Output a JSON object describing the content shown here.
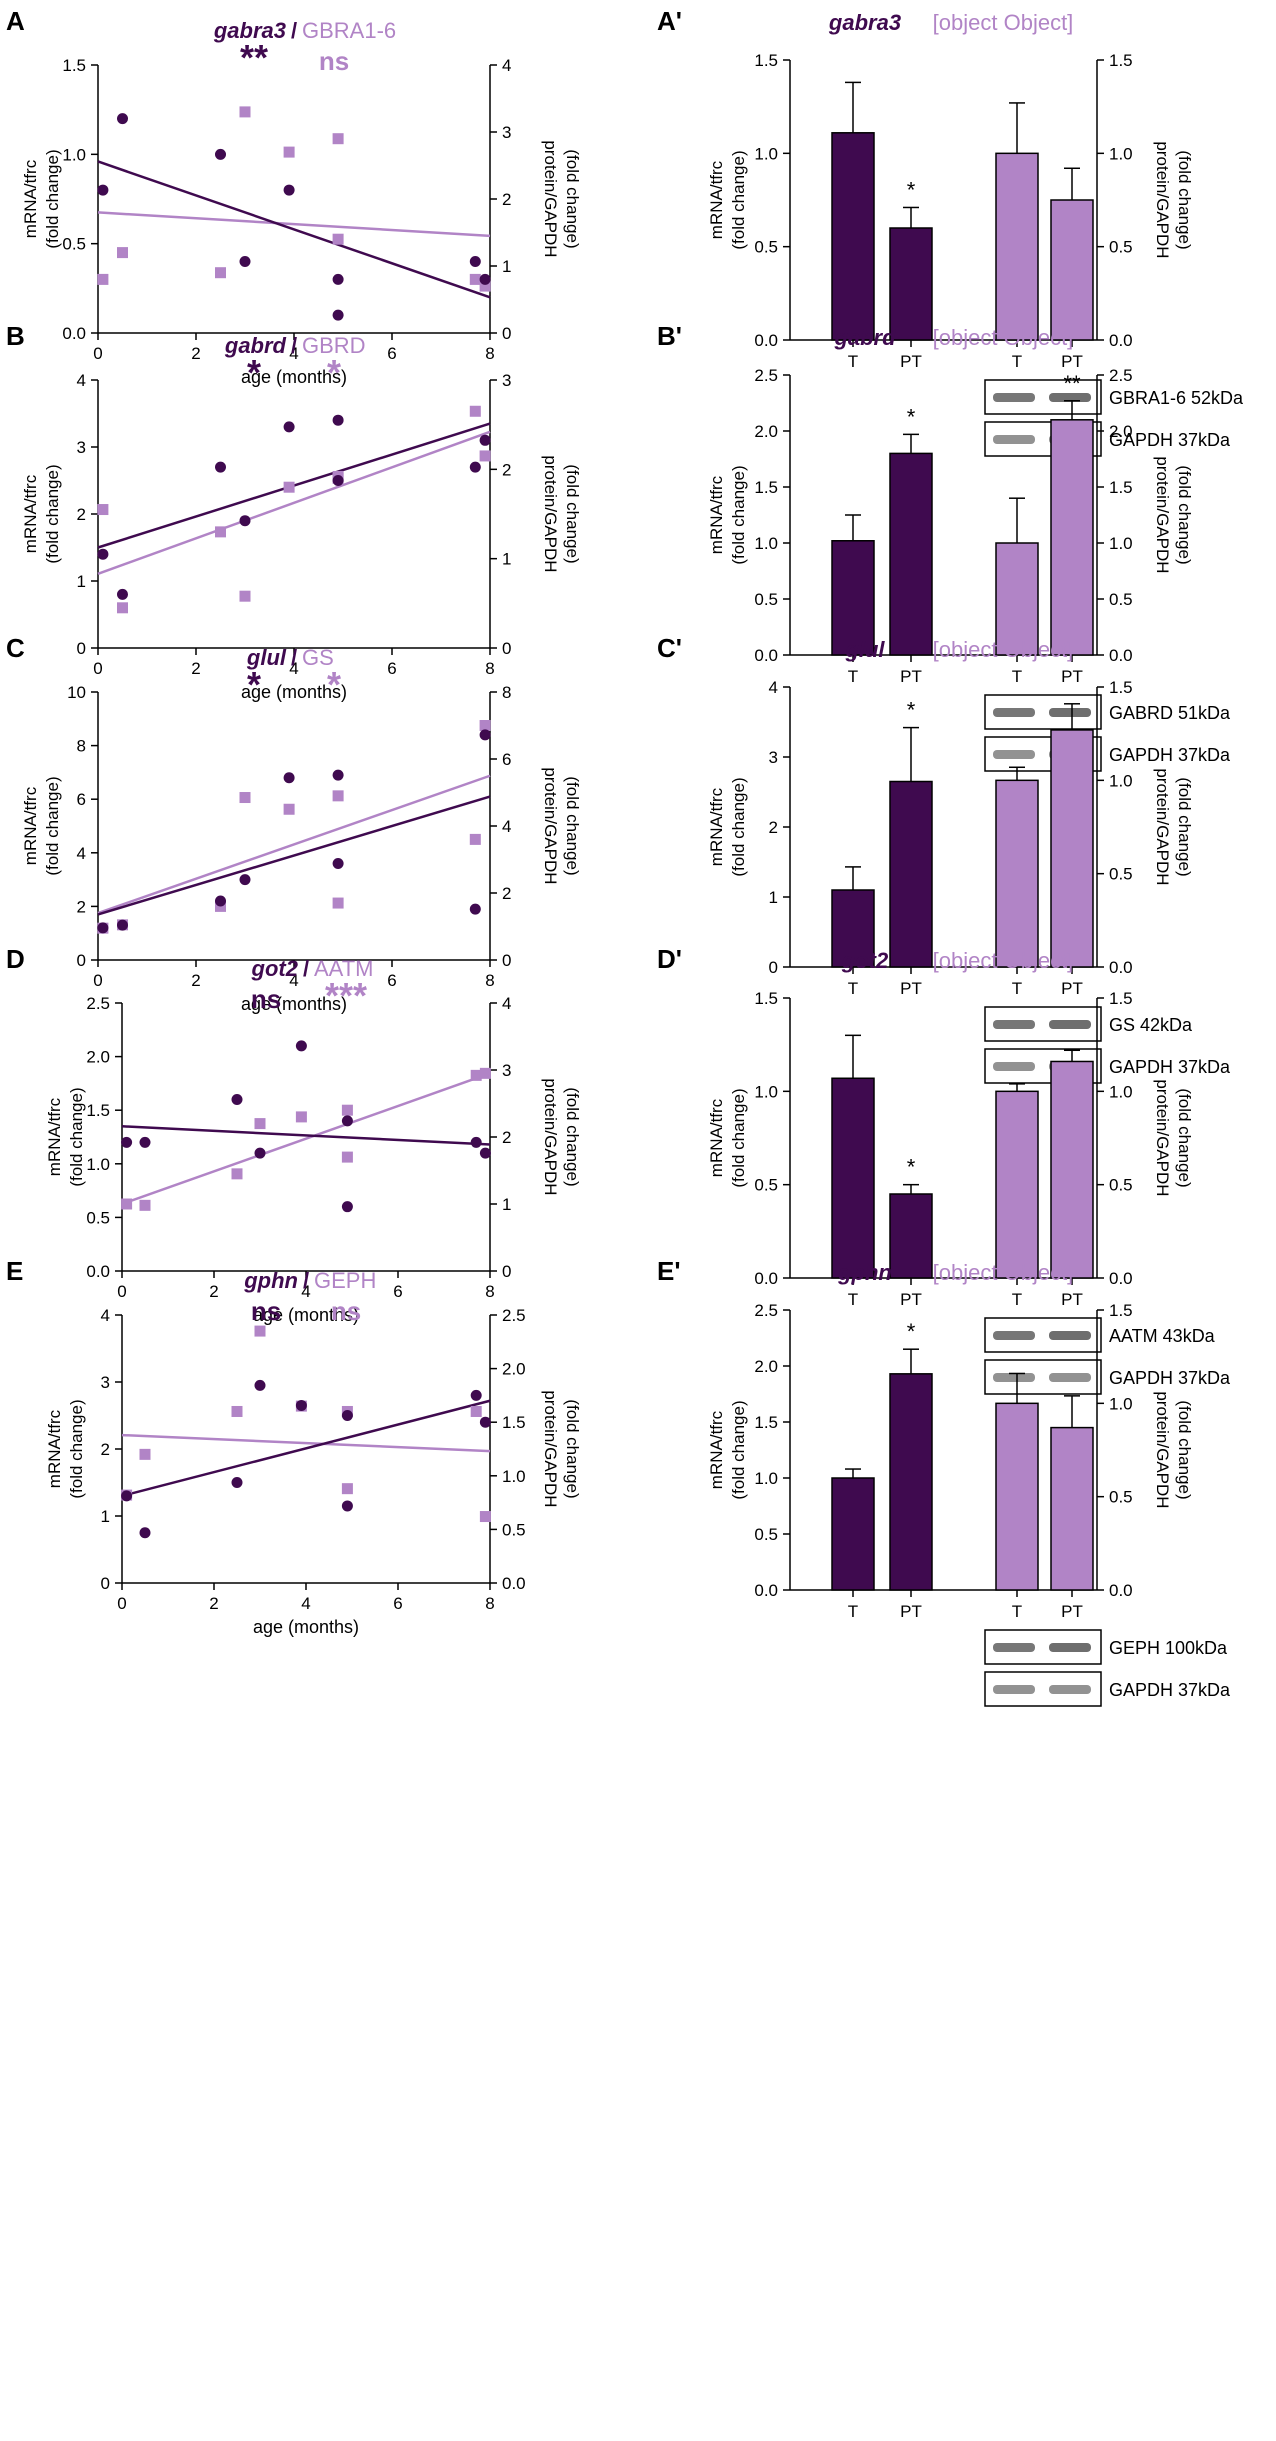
{
  "colors": {
    "dark": "#3f0a4f",
    "light": "#b184c6",
    "axis": "#000000",
    "blot_bg": "#e6e6e6",
    "band": "#4a4a4a"
  },
  "chart_data": [
    {
      "panel": "A",
      "type": "scatter",
      "gene": "gabra3",
      "protein": "GBRA1-6",
      "sig_gene": "**",
      "sig_protein": "ns",
      "xlabel": "age (months)",
      "ylabel_left": [
        "mRNA/tfrc",
        "(fold change)"
      ],
      "ylabel_right": [
        "protein/GAPDH",
        "(fold change)"
      ],
      "xlim": [
        0,
        8
      ],
      "xticks": [
        0,
        2,
        4,
        6,
        8
      ],
      "ylim_left": [
        0,
        1.5
      ],
      "yticks_left": [
        0,
        0.5,
        1.0,
        1.5
      ],
      "ytick_labels_left": [
        "0.0",
        "0.5",
        "1.0",
        "1.5"
      ],
      "ylim_right": [
        0,
        4
      ],
      "yticks_right": [
        0,
        1,
        2,
        3,
        4
      ],
      "ytick_labels_right": [
        "0",
        "1",
        "2",
        "3",
        "4"
      ],
      "mrna_points": [
        [
          0.1,
          0.8
        ],
        [
          0.5,
          1.2
        ],
        [
          2.5,
          1.0
        ],
        [
          3.0,
          0.4
        ],
        [
          3.9,
          0.8
        ],
        [
          4.9,
          0.3
        ],
        [
          4.9,
          0.1
        ],
        [
          7.7,
          0.4
        ],
        [
          7.9,
          0.3
        ]
      ],
      "protein_points": [
        [
          0.1,
          0.8
        ],
        [
          0.5,
          1.2
        ],
        [
          2.5,
          0.9
        ],
        [
          3.0,
          3.3
        ],
        [
          3.9,
          2.7
        ],
        [
          4.9,
          2.9
        ],
        [
          4.9,
          1.4
        ],
        [
          7.7,
          0.8
        ],
        [
          7.9,
          0.7
        ]
      ],
      "mrna_fit": [
        [
          0,
          0.96
        ],
        [
          8,
          0.2
        ]
      ],
      "protein_fit": [
        [
          0,
          1.8
        ],
        [
          8,
          1.45
        ]
      ]
    },
    {
      "panel": "A'",
      "type": "bar",
      "gene": "gabra3",
      "protein": {
        "values": [
          1.0,
          0.75
        ],
        "errors": [
          0.27,
          0.17
        ],
        "sig": [
          "",
          ""
        ]
      },
      "ylabel_left": [
        "mRNA/tfrc",
        "(fold change)"
      ],
      "ylabel_right": [
        "protein/GAPDH",
        "(fold change)"
      ],
      "ylim_left": [
        0,
        1.5
      ],
      "yticks_left": [
        0,
        0.5,
        1.0,
        1.5
      ],
      "ytick_labels_left": [
        "0.0",
        "0.5",
        "1.0",
        "1.5"
      ],
      "ylim_right": [
        0,
        1.5
      ],
      "yticks_right": [
        0,
        0.5,
        1.0,
        1.5
      ],
      "ytick_labels_right": [
        "0.0",
        "0.5",
        "1.0",
        "1.5"
      ],
      "categories": [
        "T",
        "PT"
      ],
      "mrna": {
        "values": [
          1.11,
          0.6
        ],
        "errors": [
          0.27,
          0.11
        ],
        "sig": [
          "",
          "*"
        ]
      },
      "blots": [
        "GBRA1-6 52kDa",
        "GAPDH 37kDa"
      ]
    },
    {
      "panel": "B",
      "type": "scatter",
      "gene": "gabrd",
      "protein": "GBRD",
      "sig_gene": "*",
      "sig_protein": "*",
      "xlabel": "age (months)",
      "ylabel_left": [
        "mRNA/tfrc",
        "(fold change)"
      ],
      "ylabel_right": [
        "protein/GAPDH",
        "(fold change)"
      ],
      "xlim": [
        0,
        8
      ],
      "xticks": [
        0,
        2,
        4,
        6,
        8
      ],
      "ylim_left": [
        0,
        4
      ],
      "yticks_left": [
        0,
        1,
        2,
        3,
        4
      ],
      "ytick_labels_left": [
        "0",
        "1",
        "2",
        "3",
        "4"
      ],
      "ylim_right": [
        0,
        3
      ],
      "yticks_right": [
        0,
        1,
        2,
        3
      ],
      "ytick_labels_right": [
        "0",
        "1",
        "2",
        "3"
      ],
      "mrna_points": [
        [
          0.1,
          1.4
        ],
        [
          0.5,
          0.8
        ],
        [
          2.5,
          2.7
        ],
        [
          3.0,
          1.9
        ],
        [
          3.9,
          3.3
        ],
        [
          4.9,
          3.4
        ],
        [
          4.9,
          2.5
        ],
        [
          7.7,
          2.7
        ],
        [
          7.9,
          3.1
        ]
      ],
      "protein_points": [
        [
          0.1,
          1.55
        ],
        [
          0.5,
          0.45
        ],
        [
          2.5,
          1.3
        ],
        [
          3.0,
          0.58
        ],
        [
          3.9,
          1.8
        ],
        [
          4.9,
          1.92
        ],
        [
          4.9,
          1.9
        ],
        [
          7.7,
          2.65
        ],
        [
          7.9,
          2.15
        ]
      ],
      "mrna_fit": [
        [
          0,
          1.5
        ],
        [
          8,
          3.35
        ]
      ],
      "protein_fit": [
        [
          0,
          0.83
        ],
        [
          8,
          2.42
        ]
      ]
    },
    {
      "panel": "B'",
      "type": "bar",
      "gene": "gabrd",
      "protein": {
        "values": [
          1.0,
          2.1
        ],
        "errors": [
          0.4,
          0.17
        ],
        "sig": [
          "",
          "**"
        ]
      },
      "ylabel_left": [
        "mRNA/tfrc",
        "(fold change)"
      ],
      "ylabel_right": [
        "protein/GAPDH",
        "(fold change)"
      ],
      "ylim_left": [
        0,
        2.5
      ],
      "yticks_left": [
        0,
        0.5,
        1.0,
        1.5,
        2.0,
        2.5
      ],
      "ytick_labels_left": [
        "0.0",
        "0.5",
        "1.0",
        "1.5",
        "2.0",
        "2.5"
      ],
      "ylim_right": [
        0,
        2.5
      ],
      "yticks_right": [
        0,
        0.5,
        1.0,
        1.5,
        2.0,
        2.5
      ],
      "ytick_labels_right": [
        "0.0",
        "0.5",
        "1.0",
        "1.5",
        "2.0",
        "2.5"
      ],
      "categories": [
        "T",
        "PT"
      ],
      "mrna": {
        "values": [
          1.02,
          1.8
        ],
        "errors": [
          0.23,
          0.17
        ],
        "sig": [
          "",
          "*"
        ]
      },
      "blots": [
        "GABRD 51kDa",
        "GAPDH 37kDa"
      ]
    },
    {
      "panel": "C",
      "type": "scatter",
      "gene": "glul",
      "protein": "GS",
      "sig_gene": "*",
      "sig_protein": "*",
      "xlabel": "age (months)",
      "ylabel_left": [
        "mRNA/tfrc",
        "(fold change)"
      ],
      "ylabel_right": [
        "protein/GAPDH",
        "(fold change)"
      ],
      "xlim": [
        0,
        8
      ],
      "xticks": [
        0,
        2,
        4,
        6,
        8
      ],
      "ylim_left": [
        0,
        10
      ],
      "yticks_left": [
        0,
        2,
        4,
        6,
        8,
        10
      ],
      "ytick_labels_left": [
        "0",
        "2",
        "4",
        "6",
        "8",
        "10"
      ],
      "ylim_right": [
        0,
        8
      ],
      "yticks_right": [
        0,
        2,
        4,
        6,
        8
      ],
      "ytick_labels_right": [
        "0",
        "2",
        "4",
        "6",
        "8"
      ],
      "mrna_points": [
        [
          0.1,
          1.2
        ],
        [
          0.5,
          1.3
        ],
        [
          2.5,
          2.2
        ],
        [
          3.0,
          3.0
        ],
        [
          3.9,
          6.8
        ],
        [
          4.9,
          6.9
        ],
        [
          4.9,
          3.6
        ],
        [
          7.7,
          1.9
        ],
        [
          7.9,
          8.4
        ]
      ],
      "protein_points": [
        [
          0.1,
          0.95
        ],
        [
          0.5,
          1.05
        ],
        [
          2.5,
          1.6
        ],
        [
          3.0,
          4.85
        ],
        [
          3.9,
          4.5
        ],
        [
          4.9,
          4.9
        ],
        [
          4.9,
          1.7
        ],
        [
          7.7,
          3.6
        ],
        [
          7.9,
          7.0
        ]
      ],
      "mrna_fit": [
        [
          0,
          1.7
        ],
        [
          8,
          6.1
        ]
      ],
      "protein_fit": [
        [
          0,
          1.4
        ],
        [
          8,
          5.5
        ]
      ]
    },
    {
      "panel": "C'",
      "type": "bar",
      "gene": "glul",
      "protein": {
        "values": [
          1.0,
          1.27
        ],
        "errors": [
          0.07,
          0.14
        ],
        "sig": [
          "",
          ""
        ]
      },
      "ylabel_left": [
        "mRNA/tfrc",
        "(fold change)"
      ],
      "ylabel_right": [
        "protein/GAPDH",
        "(fold change)"
      ],
      "ylim_left": [
        0,
        4
      ],
      "yticks_left": [
        0,
        1,
        2,
        3,
        4
      ],
      "ytick_labels_left": [
        "0",
        "1",
        "2",
        "3",
        "4"
      ],
      "ylim_right": [
        0,
        1.5
      ],
      "yticks_right": [
        0,
        0.5,
        1.0,
        1.5
      ],
      "ytick_labels_right": [
        "0.0",
        "0.5",
        "1.0",
        "1.5"
      ],
      "categories": [
        "T",
        "PT"
      ],
      "mrna": {
        "values": [
          1.1,
          2.65
        ],
        "errors": [
          0.33,
          0.77
        ],
        "sig": [
          "",
          "*"
        ]
      },
      "blots": [
        "GS 42kDa",
        "GAPDH 37kDa"
      ]
    },
    {
      "panel": "D",
      "type": "scatter",
      "gene": "got2",
      "protein": "AATM",
      "sig_gene": "ns",
      "sig_protein": "***",
      "xlabel": "age (months)",
      "ylabel_left": [
        "mRNA/tfrc",
        "(fold change)"
      ],
      "ylabel_right": [
        "protein/GAPDH",
        "(fold change)"
      ],
      "xlim": [
        0,
        8
      ],
      "xticks": [
        0,
        2,
        4,
        6,
        8
      ],
      "ylim_left": [
        0,
        2.5
      ],
      "yticks_left": [
        0,
        0.5,
        1.0,
        1.5,
        2.0,
        2.5
      ],
      "ytick_labels_left": [
        "0.0",
        "0.5",
        "1.0",
        "1.5",
        "2.0",
        "2.5"
      ],
      "ylim_right": [
        0,
        4
      ],
      "yticks_right": [
        0,
        1,
        2,
        3,
        4
      ],
      "ytick_labels_right": [
        "0",
        "1",
        "2",
        "3",
        "4"
      ],
      "mrna_points": [
        [
          0.1,
          1.2
        ],
        [
          0.5,
          1.2
        ],
        [
          2.5,
          1.6
        ],
        [
          3.0,
          1.1
        ],
        [
          3.9,
          2.1
        ],
        [
          4.9,
          1.4
        ],
        [
          4.9,
          0.6
        ],
        [
          7.7,
          1.2
        ],
        [
          7.9,
          1.1
        ]
      ],
      "protein_points": [
        [
          0.1,
          1.0
        ],
        [
          0.5,
          0.98
        ],
        [
          2.5,
          1.45
        ],
        [
          3.0,
          2.2
        ],
        [
          3.9,
          2.3
        ],
        [
          4.9,
          2.4
        ],
        [
          4.9,
          1.7
        ],
        [
          7.7,
          2.92
        ],
        [
          7.9,
          2.95
        ]
      ],
      "mrna_fit": [
        [
          0,
          1.35
        ],
        [
          8,
          1.18
        ]
      ],
      "protein_fit": [
        [
          0,
          1.0
        ],
        [
          8,
          2.95
        ]
      ]
    },
    {
      "panel": "D'",
      "type": "bar",
      "gene": "got2",
      "protein": {
        "values": [
          1.0,
          1.16
        ],
        "errors": [
          0.04,
          0.06
        ],
        "sig": [
          "",
          ""
        ]
      },
      "ylabel_left": [
        "mRNA/tfrc",
        "(fold change)"
      ],
      "ylabel_right": [
        "protein/GAPDH",
        "(fold change)"
      ],
      "ylim_left": [
        0,
        1.5
      ],
      "yticks_left": [
        0,
        0.5,
        1.0,
        1.5
      ],
      "ytick_labels_left": [
        "0.0",
        "0.5",
        "1.0",
        "1.5"
      ],
      "ylim_right": [
        0,
        1.5
      ],
      "yticks_right": [
        0,
        0.5,
        1.0,
        1.5
      ],
      "ytick_labels_right": [
        "0.0",
        "0.5",
        "1.0",
        "1.5"
      ],
      "categories": [
        "T",
        "PT"
      ],
      "mrna": {
        "values": [
          1.07,
          0.45
        ],
        "errors": [
          0.23,
          0.05
        ],
        "sig": [
          "",
          "*"
        ]
      },
      "blots": [
        "AATM 43kDa",
        "GAPDH 37kDa"
      ]
    },
    {
      "panel": "E",
      "type": "scatter",
      "gene": "gphn",
      "protein": "GEPH",
      "sig_gene": "ns",
      "sig_protein": "ns",
      "xlabel": "age (months)",
      "ylabel_left": [
        "mRNA/tfrc",
        "(fold change)"
      ],
      "ylabel_right": [
        "protein/GAPDH",
        "(fold change)"
      ],
      "xlim": [
        0,
        8
      ],
      "xticks": [
        0,
        2,
        4,
        6,
        8
      ],
      "ylim_left": [
        0,
        4
      ],
      "yticks_left": [
        0,
        1,
        2,
        3,
        4
      ],
      "ytick_labels_left": [
        "0",
        "1",
        "2",
        "3",
        "4"
      ],
      "ylim_right": [
        0,
        2.5
      ],
      "yticks_right": [
        0,
        0.5,
        1.0,
        1.5,
        2.0,
        2.5
      ],
      "ytick_labels_right": [
        "0.0",
        "0.5",
        "1.0",
        "1.5",
        "2.0",
        "2.5"
      ],
      "mrna_points": [
        [
          0.1,
          1.3
        ],
        [
          0.5,
          0.75
        ],
        [
          2.5,
          1.5
        ],
        [
          3.0,
          2.95
        ],
        [
          3.9,
          2.65
        ],
        [
          4.9,
          2.5
        ],
        [
          4.9,
          1.15
        ],
        [
          7.7,
          2.8
        ],
        [
          7.9,
          2.4
        ]
      ],
      "protein_points": [
        [
          0.1,
          0.82
        ],
        [
          0.5,
          1.2
        ],
        [
          2.5,
          1.6
        ],
        [
          3.0,
          2.35
        ],
        [
          3.9,
          1.65
        ],
        [
          4.9,
          1.6
        ],
        [
          4.9,
          0.88
        ],
        [
          7.7,
          1.6
        ],
        [
          7.9,
          0.62
        ]
      ],
      "mrna_fit": [
        [
          0,
          1.3
        ],
        [
          8,
          2.72
        ]
      ],
      "protein_fit": [
        [
          0,
          1.38
        ],
        [
          8,
          1.23
        ]
      ]
    },
    {
      "panel": "E'",
      "type": "bar",
      "gene": "gphn",
      "protein": {
        "values": [
          1.0,
          0.87
        ],
        "errors": [
          0.16,
          0.17
        ],
        "sig": [
          "",
          ""
        ]
      },
      "ylabel_left": [
        "mRNA/tfrc",
        "(fold change)"
      ],
      "ylabel_right": [
        "protein/GAPDH",
        "(fold change)"
      ],
      "ylim_left": [
        0,
        2.5
      ],
      "yticks_left": [
        0,
        0.5,
        1.0,
        1.5,
        2.0,
        2.5
      ],
      "ytick_labels_left": [
        "0.0",
        "0.5",
        "1.0",
        "1.5",
        "2.0",
        "2.5"
      ],
      "ylim_right": [
        0,
        1.5
      ],
      "yticks_right": [
        0,
        0.5,
        1.0,
        1.5
      ],
      "ytick_labels_right": [
        "0.0",
        "0.5",
        "1.0",
        "1.5"
      ],
      "categories": [
        "T",
        "PT"
      ],
      "mrna": {
        "values": [
          1.0,
          1.93
        ],
        "errors": [
          0.08,
          0.22
        ],
        "sig": [
          "",
          "*"
        ]
      },
      "blots": [
        "GEPH 100kDa",
        "GAPDH 37kDa"
      ]
    }
  ]
}
